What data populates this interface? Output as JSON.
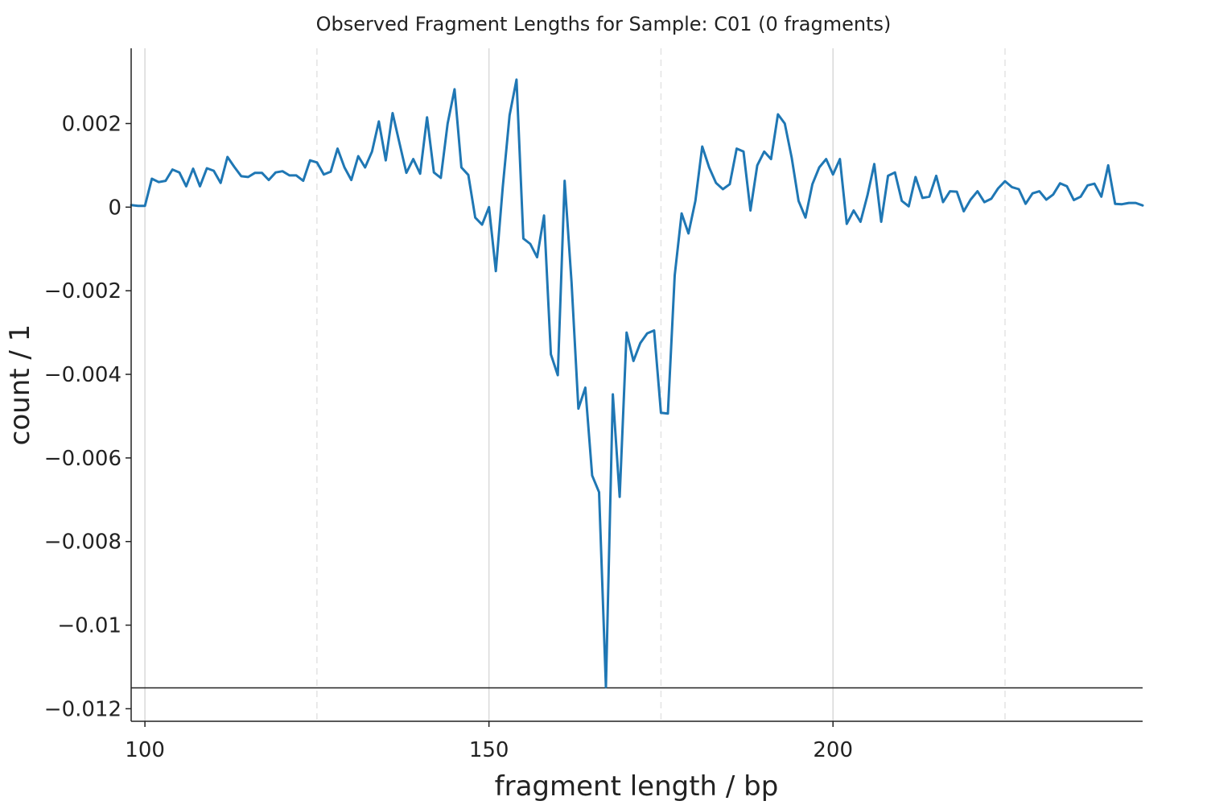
{
  "chart_data": {
    "type": "line",
    "title": "Observed Fragment Lengths for Sample: C01 (0 fragments)",
    "xlabel": "fragment length / bp",
    "ylabel": "count / 1",
    "xlim": [
      98,
      245
    ],
    "ylim": [
      -0.0123,
      0.0038
    ],
    "xticks": [
      {
        "value": 100,
        "label": "100"
      },
      {
        "value": 150,
        "label": "150"
      },
      {
        "value": 200,
        "label": "200"
      }
    ],
    "yticks": [
      {
        "value": 0.002,
        "label": "0.002"
      },
      {
        "value": 0,
        "label": "0"
      },
      {
        "value": -0.002,
        "label": "−0.002"
      },
      {
        "value": -0.004,
        "label": "−0.004"
      },
      {
        "value": -0.006,
        "label": "−0.006"
      },
      {
        "value": -0.008,
        "label": "−0.008"
      },
      {
        "value": -0.01,
        "label": "−0.01"
      },
      {
        "value": -0.012,
        "label": "−0.012"
      }
    ],
    "major_gridlines_x": [
      100,
      150,
      200
    ],
    "minor_gridlines_x": [
      125,
      175,
      225
    ],
    "hline": -0.0115,
    "line_color": "#1f77b4",
    "series": [
      {
        "x": [
          98,
          99,
          100,
          101,
          102,
          103,
          104,
          105,
          106,
          107,
          108,
          109,
          110,
          111,
          112,
          113,
          114,
          115,
          116,
          117,
          118,
          119,
          120,
          121,
          122,
          123,
          124,
          125,
          126,
          127,
          128,
          129,
          130,
          131,
          132,
          133,
          134,
          135,
          136,
          137,
          138,
          139,
          140,
          141,
          142,
          143,
          144,
          145,
          146,
          147,
          148,
          149,
          150,
          151,
          152,
          153,
          154,
          155,
          156,
          157,
          158,
          159,
          160,
          161,
          162,
          163,
          164,
          165,
          166,
          167,
          168,
          169,
          170,
          171,
          172,
          173,
          174,
          175,
          176,
          177,
          178,
          179,
          180,
          181,
          182,
          183,
          184,
          185,
          186,
          187,
          188,
          189,
          190,
          191,
          192,
          193,
          194,
          195,
          196,
          197,
          198,
          199,
          200,
          201,
          202,
          203,
          204,
          205,
          206,
          207,
          208,
          209,
          210,
          211,
          212,
          213,
          214,
          215,
          216,
          217,
          218,
          219,
          220,
          221,
          222,
          223,
          224,
          225,
          226,
          227,
          228,
          229,
          230,
          231,
          232,
          233,
          234,
          235,
          236,
          237,
          238,
          239,
          240,
          241,
          242,
          243,
          244,
          245
        ],
        "values": [
          5e-05,
          3e-05,
          3e-05,
          0.00068,
          0.0006,
          0.00063,
          0.0009,
          0.00083,
          0.0005,
          0.00092,
          0.0005,
          0.00093,
          0.00087,
          0.00058,
          0.0012,
          0.00096,
          0.00074,
          0.00072,
          0.00082,
          0.00082,
          0.00065,
          0.00083,
          0.00086,
          0.00076,
          0.00076,
          0.00063,
          0.00112,
          0.00107,
          0.00078,
          0.00085,
          0.0014,
          0.00095,
          0.00065,
          0.00122,
          0.00095,
          0.00133,
          0.00205,
          0.00112,
          0.00225,
          0.00153,
          0.00082,
          0.00115,
          0.0008,
          0.00215,
          0.00083,
          0.0007,
          0.002,
          0.00282,
          0.00095,
          0.00077,
          -0.00025,
          -0.00042,
          0.0,
          -0.00153,
          0.00048,
          0.0022,
          0.00305,
          -0.00075,
          -0.00088,
          -0.0012,
          -0.0002,
          -0.00352,
          -0.00402,
          0.00063,
          -0.0018,
          -0.00482,
          -0.00432,
          -0.00642,
          -0.00682,
          -0.01148,
          -0.00448,
          -0.00693,
          -0.003,
          -0.00368,
          -0.00325,
          -0.00302,
          -0.00295,
          -0.00492,
          -0.00494,
          -0.00163,
          -0.00015,
          -0.00063,
          0.00015,
          0.00145,
          0.00095,
          0.00058,
          0.00043,
          0.00055,
          0.0014,
          0.00133,
          -8e-05,
          0.001,
          0.00133,
          0.00115,
          0.00222,
          0.002,
          0.00118,
          0.00015,
          -0.00025,
          0.00055,
          0.00095,
          0.00115,
          0.00078,
          0.00115,
          -0.0004,
          -8e-05,
          -0.00035,
          0.00028,
          0.00103,
          -0.00035,
          0.00075,
          0.00083,
          0.00015,
          2e-05,
          0.00072,
          0.00022,
          0.00025,
          0.00075,
          0.00012,
          0.00038,
          0.00037,
          -0.0001,
          0.00018,
          0.00038,
          0.00012,
          0.0002,
          0.00045,
          0.00062,
          0.00048,
          0.00043,
          8e-05,
          0.00033,
          0.00038,
          0.00018,
          0.0003,
          0.00057,
          0.0005,
          0.00017,
          0.00025,
          0.00052,
          0.00056,
          0.00025,
          0.001,
          8e-05,
          7e-05,
          0.0001,
          0.0001,
          4e-05
        ]
      }
    ]
  }
}
